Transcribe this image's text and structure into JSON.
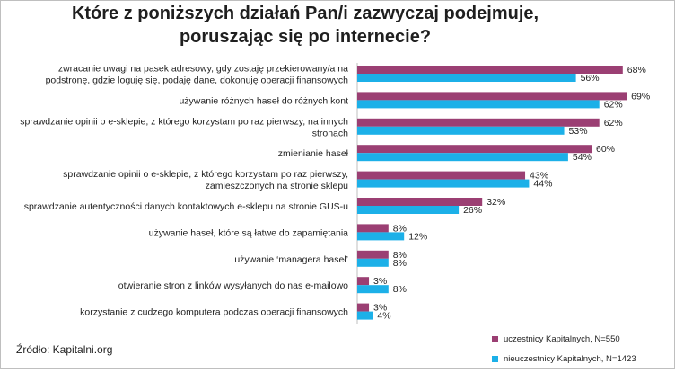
{
  "title_lines": [
    "Które z poniższych działań Pan/i zazwyczaj podejmuje,",
    "poruszając się po internecie?"
  ],
  "source": "Źródło: Kapitalni.org",
  "colors": {
    "series1": "#9b3f73",
    "series2": "#1cb0e8"
  },
  "chart_data": {
    "type": "bar",
    "orientation": "horizontal",
    "categories": [
      [
        "zwracanie uwagi na pasek adresowy, gdy zostaję przekierowany/a na",
        "podstronę, gdzie loguję się, podaję  dane, dokonuję operacji finansowych"
      ],
      [
        "używanie różnych haseł do różnych kont"
      ],
      [
        "sprawdzanie opinii o e-sklepie, z którego korzystam  po raz pierwszy, na innych",
        "stronach"
      ],
      [
        "zmienianie haseł"
      ],
      [
        "sprawdzanie opinii o e-sklepie, z którego korzystam po raz pierwszy,",
        "zamieszczonych na stronie sklepu"
      ],
      [
        "sprawdzanie autentyczności danych kontaktowych e-sklepu na stronie GUS-u"
      ],
      [
        "używanie haseł, które są łatwe do zapamiętania"
      ],
      [
        "używanie ‘managera haseł’"
      ],
      [
        "otwieranie stron z linków wysyłanych do nas e-mailowo"
      ],
      [
        "korzystanie z cudzego komputera podczas operacji finansowych"
      ]
    ],
    "series": [
      {
        "name": "uczestnicy Kapitalnych, N=550",
        "values": [
          68,
          69,
          62,
          60,
          43,
          32,
          8,
          8,
          3,
          3
        ]
      },
      {
        "name": "nieuczestnicy Kapitalnych, N=1423",
        "values": [
          56,
          62,
          53,
          54,
          44,
          26,
          12,
          8,
          8,
          4
        ]
      }
    ],
    "value_suffix": "%",
    "xlim": [
      0,
      70
    ],
    "grid": false,
    "legend_position": "bottom-right"
  }
}
